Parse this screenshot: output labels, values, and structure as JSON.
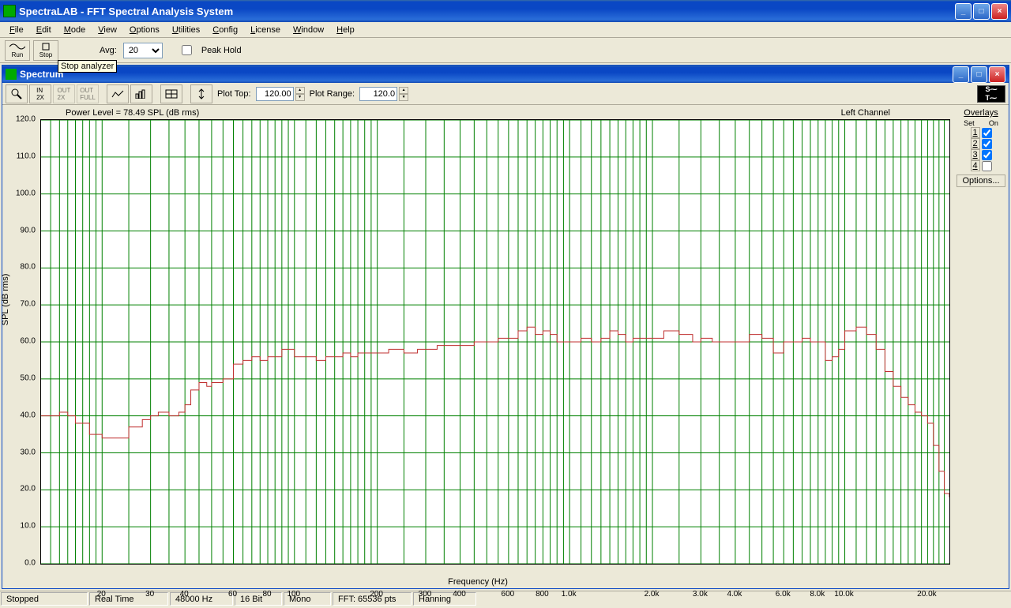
{
  "main_title": "SpectraLAB - FFT Spectral Analysis System",
  "menu": [
    "File",
    "Edit",
    "Mode",
    "View",
    "Options",
    "Utilities",
    "Config",
    "License",
    "Window",
    "Help"
  ],
  "toolbar": {
    "run": "Run",
    "stop": "Stop",
    "avg_label": "Avg:",
    "avg_value": "20",
    "peak_hold": "Peak Hold"
  },
  "tooltip": "Stop analyzer",
  "inner_title": "Spectrum",
  "plot_top_label": "Plot Top:",
  "plot_top_value": "120.00",
  "plot_range_label": "Plot Range:",
  "plot_range_value": "120.0",
  "power_level": "Power Level = 78.49 SPL (dB rms)",
  "channel": "Left Channel",
  "ylabel": "SPL (dB rms)",
  "xlabel": "Frequency (Hz)",
  "overlays_title": "Overlays",
  "overlays": [
    {
      "n": "1",
      "on": true
    },
    {
      "n": "2",
      "on": true
    },
    {
      "n": "3",
      "on": true
    },
    {
      "n": "4",
      "on": false
    }
  ],
  "options_btn": "Options...",
  "status": [
    "Stopped",
    "Real Time",
    "48000 Hz",
    "16 Bit",
    "Mono",
    "FFT: 65536 pts",
    "Hanning"
  ],
  "chart": {
    "type": "line",
    "line_color": "#c03030",
    "grid_color": "#008000",
    "background": "#ffffff",
    "ylim": [
      0,
      120
    ],
    "ytick_step": 10,
    "x_log_min": 12,
    "x_log_max": 24000,
    "x_major_ticks": [
      20,
      30,
      40,
      60,
      80,
      100,
      200,
      300,
      400,
      600,
      800,
      1000,
      2000,
      3000,
      4000,
      6000,
      8000,
      10000,
      20000
    ],
    "x_tick_labels": [
      "20",
      "30",
      "40",
      "60",
      "80",
      "100",
      "200",
      "300",
      "400",
      "600",
      "800",
      "1.0k",
      "2.0k",
      "3.0k",
      "4.0k",
      "6.0k",
      "8.0k",
      "10.0k",
      "20.0k"
    ],
    "x_minor_grid": [
      13,
      14,
      15,
      16,
      17,
      18,
      19,
      25,
      35,
      45,
      50,
      55,
      65,
      70,
      75,
      85,
      90,
      95,
      110,
      120,
      130,
      140,
      150,
      160,
      170,
      180,
      190,
      250,
      350,
      450,
      500,
      550,
      650,
      700,
      750,
      850,
      900,
      950,
      1100,
      1200,
      1300,
      1400,
      1500,
      1600,
      1700,
      1800,
      1900,
      2500,
      3500,
      4500,
      5000,
      5500,
      6500,
      7000,
      7500,
      8500,
      9000,
      9500,
      11000,
      12000,
      13000,
      14000,
      15000,
      16000,
      17000,
      18000,
      19000,
      21000,
      22000,
      23000
    ],
    "data": [
      [
        12,
        40
      ],
      [
        14,
        41
      ],
      [
        15,
        40
      ],
      [
        16,
        38
      ],
      [
        18,
        35
      ],
      [
        20,
        34
      ],
      [
        22,
        34
      ],
      [
        25,
        37
      ],
      [
        28,
        39
      ],
      [
        30,
        40
      ],
      [
        32,
        41
      ],
      [
        35,
        40
      ],
      [
        38,
        41
      ],
      [
        40,
        43
      ],
      [
        42,
        47
      ],
      [
        45,
        49
      ],
      [
        48,
        48
      ],
      [
        50,
        49
      ],
      [
        55,
        50
      ],
      [
        60,
        54
      ],
      [
        65,
        55
      ],
      [
        70,
        56
      ],
      [
        75,
        55
      ],
      [
        80,
        56
      ],
      [
        85,
        56
      ],
      [
        90,
        58
      ],
      [
        95,
        58
      ],
      [
        100,
        56
      ],
      [
        110,
        56
      ],
      [
        120,
        55
      ],
      [
        130,
        56
      ],
      [
        140,
        56
      ],
      [
        150,
        57
      ],
      [
        160,
        56
      ],
      [
        170,
        57
      ],
      [
        180,
        57
      ],
      [
        190,
        57
      ],
      [
        200,
        57
      ],
      [
        220,
        58
      ],
      [
        250,
        57
      ],
      [
        280,
        58
      ],
      [
        300,
        58
      ],
      [
        330,
        59
      ],
      [
        360,
        59
      ],
      [
        400,
        59
      ],
      [
        450,
        60
      ],
      [
        500,
        60
      ],
      [
        550,
        61
      ],
      [
        600,
        61
      ],
      [
        650,
        63
      ],
      [
        700,
        64
      ],
      [
        750,
        62
      ],
      [
        800,
        63
      ],
      [
        850,
        62
      ],
      [
        900,
        60
      ],
      [
        950,
        60
      ],
      [
        1000,
        60
      ],
      [
        1100,
        61
      ],
      [
        1200,
        60
      ],
      [
        1300,
        61
      ],
      [
        1400,
        63
      ],
      [
        1500,
        62
      ],
      [
        1600,
        60
      ],
      [
        1700,
        61
      ],
      [
        1800,
        61
      ],
      [
        1900,
        61
      ],
      [
        2000,
        61
      ],
      [
        2200,
        63
      ],
      [
        2500,
        62
      ],
      [
        2800,
        60
      ],
      [
        3000,
        61
      ],
      [
        3300,
        60
      ],
      [
        3600,
        60
      ],
      [
        4000,
        60
      ],
      [
        4500,
        62
      ],
      [
        5000,
        61
      ],
      [
        5500,
        57
      ],
      [
        6000,
        60
      ],
      [
        6500,
        60
      ],
      [
        7000,
        61
      ],
      [
        7500,
        60
      ],
      [
        8000,
        60
      ],
      [
        8500,
        55
      ],
      [
        9000,
        56
      ],
      [
        9500,
        58
      ],
      [
        10000,
        63
      ],
      [
        11000,
        64
      ],
      [
        12000,
        62
      ],
      [
        13000,
        58
      ],
      [
        14000,
        52
      ],
      [
        15000,
        48
      ],
      [
        16000,
        45
      ],
      [
        17000,
        43
      ],
      [
        18000,
        41
      ],
      [
        19000,
        40
      ],
      [
        20000,
        38
      ],
      [
        21000,
        32
      ],
      [
        22000,
        25
      ],
      [
        23000,
        19
      ],
      [
        24000,
        18
      ]
    ]
  }
}
